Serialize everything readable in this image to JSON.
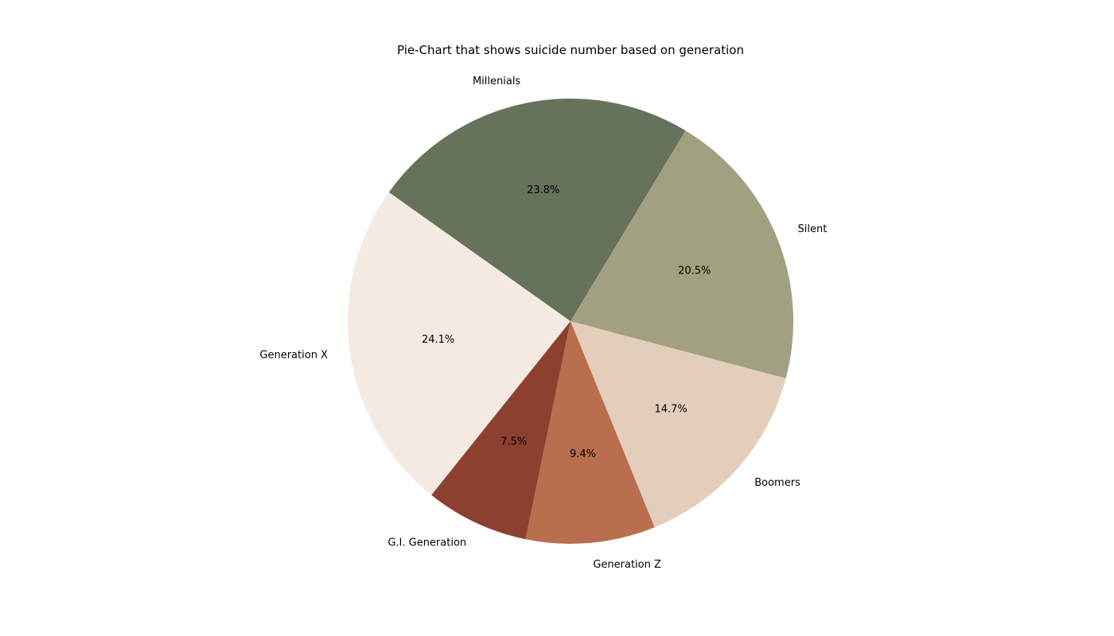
{
  "chart_data": {
    "type": "pie",
    "title": "Pie-Chart that shows suicide number based on generation",
    "start_angle_deg": 144.6,
    "direction": "counterclockwise",
    "slices": [
      {
        "label": "Generation X",
        "value": 24.1,
        "pct_text": "24.1%",
        "color": "#f3ebe2"
      },
      {
        "label": "G.I. Generation",
        "value": 7.5,
        "pct_text": "7.5%",
        "color": "#8c4030"
      },
      {
        "label": "Generation Z",
        "value": 9.4,
        "pct_text": "9.4%",
        "color": "#b96e4d"
      },
      {
        "label": "Boomers",
        "value": 14.7,
        "pct_text": "14.7%",
        "color": "#e5cdbc"
      },
      {
        "label": "Silent",
        "value": 20.5,
        "pct_text": "20.5%",
        "color": "#a1a182"
      },
      {
        "label": "Millenials",
        "value": 23.8,
        "pct_text": "23.8%",
        "color": "#67725a"
      }
    ]
  }
}
